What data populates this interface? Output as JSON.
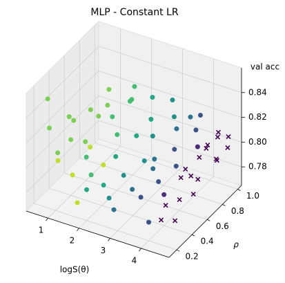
{
  "chart_data": {
    "type": "scatter3d",
    "title": "MLP - Constant LR",
    "xlabel": "logS(θ)",
    "ylabel": "ρ",
    "zlabel": "val acc",
    "xlim": [
      0.3,
      4.9
    ],
    "ylim": [
      0.1,
      1.05
    ],
    "zlim": [
      0.765,
      0.86
    ],
    "xticks": [
      1,
      2,
      3,
      4
    ],
    "yticks": [
      0.2,
      0.4,
      0.6,
      0.8,
      {
        "value": 1,
        "label": "1.0"
      }
    ],
    "zticks": [
      0.78,
      {
        "value": 0.8,
        "label": "0.80"
      },
      0.82,
      0.84
    ],
    "grid": true,
    "series": [
      {
        "color": "#bddf26",
        "marker": "o",
        "x": [
          1.7,
          1.3,
          1.5,
          1.2,
          1.8
        ],
        "y": [
          0.2,
          0.3,
          0.45,
          0.15,
          0.5
        ],
        "z": [
          0.777,
          0.79,
          0.805,
          0.81,
          0.79
        ]
      },
      {
        "color": "#7ad151",
        "marker": "o",
        "x": [
          0.7,
          0.5,
          0.6,
          1.0,
          0.9,
          1.1,
          0.8,
          1.2,
          1.4,
          1.0,
          0.7
        ],
        "y": [
          0.5,
          0.3,
          0.6,
          0.4,
          0.7,
          0.55,
          0.2,
          0.8,
          0.6,
          0.9,
          0.35
        ],
        "z": [
          0.82,
          0.845,
          0.81,
          0.81,
          0.815,
          0.8,
          0.83,
          0.815,
          0.82,
          0.82,
          0.8
        ]
      },
      {
        "color": "#44bf70",
        "marker": "o",
        "x": [
          1.6,
          1.8,
          1.5,
          2.0,
          1.7,
          1.9,
          2.1
        ],
        "y": [
          0.7,
          0.85,
          0.4,
          0.6,
          0.95,
          0.3,
          0.75
        ],
        "z": [
          0.815,
          0.82,
          0.8,
          0.81,
          0.825,
          0.795,
          0.83
        ]
      },
      {
        "color": "#22a884",
        "marker": "o",
        "x": [
          2.2,
          2.4,
          2.3,
          2.5,
          2.0,
          2.6
        ],
        "y": [
          0.5,
          0.9,
          0.3,
          0.65,
          0.2,
          0.8
        ],
        "z": [
          0.8,
          0.825,
          0.79,
          0.81,
          0.79,
          0.815
        ]
      },
      {
        "color": "#21918c",
        "marker": "o",
        "x": [
          2.7,
          2.9,
          2.8,
          3.0,
          2.6,
          3.1
        ],
        "y": [
          0.4,
          0.7,
          1.0,
          0.55,
          0.25,
          0.9
        ],
        "z": [
          0.795,
          0.81,
          0.82,
          0.8,
          0.785,
          0.815
        ]
      },
      {
        "color": "#2c728e",
        "marker": "o",
        "x": [
          3.2,
          3.3,
          3.1,
          3.4,
          3.5,
          3.0
        ],
        "y": [
          0.6,
          0.85,
          0.35,
          0.5,
          0.95,
          0.15
        ],
        "z": [
          0.8,
          0.81,
          0.79,
          0.8,
          0.815,
          0.785
        ]
      },
      {
        "color": "#3b528b",
        "marker": "o",
        "x": [
          3.6,
          3.7,
          3.8,
          3.5,
          3.9,
          4.0,
          3.7
        ],
        "y": [
          0.7,
          0.45,
          0.9,
          0.3,
          0.6,
          0.2,
          1.0
        ],
        "z": [
          0.805,
          0.795,
          0.81,
          0.79,
          0.8,
          0.78,
          0.815
        ]
      },
      {
        "color": "#472d7b",
        "marker": "o",
        "x": [
          4.1,
          4.0
        ],
        "y": [
          0.8,
          0.4
        ],
        "z": [
          0.805,
          0.79
        ]
      },
      {
        "color": "#440154",
        "marker": "x",
        "x": [
          4.3,
          4.4,
          4.5,
          4.6,
          4.7,
          4.3,
          4.5,
          4.6,
          4.4,
          4.7,
          4.2,
          4.5,
          4.6,
          4.4,
          4.7,
          4.3,
          4.6,
          4.5
        ],
        "y": [
          0.5,
          0.7,
          0.9,
          0.6,
          0.8,
          0.3,
          0.4,
          1.0,
          0.2,
          0.5,
          0.6,
          0.75,
          0.3,
          0.95,
          0.95,
          0.85,
          0.85,
          0.55
        ],
        "z": [
          0.8,
          0.805,
          0.81,
          0.795,
          0.8,
          0.79,
          0.79,
          0.805,
          0.785,
          0.79,
          0.8,
          0.81,
          0.78,
          0.81,
          0.8,
          0.805,
          0.795,
          0.8
        ]
      }
    ]
  }
}
